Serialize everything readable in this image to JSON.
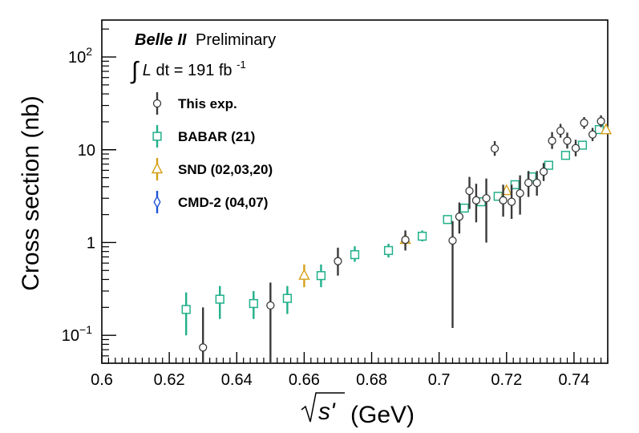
{
  "chart_data": {
    "type": "scatter",
    "ylog": true,
    "xlim": [
      0.6,
      0.75
    ],
    "ylim": [
      0.05,
      250
    ],
    "xlabel_prefix": "s'",
    "xlabel_unit": "(GeV)",
    "ylabel": "Cross section (nb)",
    "x_ticks": [
      0.6,
      0.62,
      0.64,
      0.66,
      0.68,
      0.7,
      0.72,
      0.74
    ],
    "x_tick_labels": [
      "0.6",
      "0.62",
      "0.64",
      "0.66",
      "0.68",
      "0.7",
      "0.72",
      "0.74"
    ],
    "y_major_ticks": [
      {
        "value": 0.1,
        "base": "10",
        "exp": "−1"
      },
      {
        "value": 1,
        "label": "1"
      },
      {
        "value": 10,
        "label": "10"
      },
      {
        "value": 100,
        "base": "10",
        "exp": "2"
      }
    ],
    "header": {
      "experiment": "Belle II",
      "status": "Preliminary",
      "lumi_text": "dt = 191 fb",
      "lumi_sup": "-1"
    },
    "series": [
      {
        "name": "This exp.",
        "marker": "circle",
        "color": "#3a3a3a",
        "points": [
          {
            "x": 0.63,
            "y": 0.074,
            "lo": 0.02,
            "hi": 0.2
          },
          {
            "x": 0.65,
            "y": 0.21,
            "lo": 0.02,
            "hi": 0.37
          },
          {
            "x": 0.67,
            "y": 0.63,
            "lo": 0.44,
            "hi": 0.88
          },
          {
            "x": 0.69,
            "y": 1.07,
            "lo": 0.82,
            "hi": 1.35
          },
          {
            "x": 0.704,
            "y": 1.05,
            "lo": 0.12,
            "hi": 1.7
          },
          {
            "x": 0.706,
            "y": 1.9,
            "lo": 1.25,
            "hi": 2.7
          },
          {
            "x": 0.709,
            "y": 3.6,
            "lo": 2.3,
            "hi": 5.1
          },
          {
            "x": 0.711,
            "y": 2.85,
            "lo": 1.65,
            "hi": 4.3
          },
          {
            "x": 0.714,
            "y": 3.0,
            "lo": 1.0,
            "hi": 4.9
          },
          {
            "x": 0.7165,
            "y": 10.3,
            "lo": 8.6,
            "hi": 12.4
          },
          {
            "x": 0.719,
            "y": 2.85,
            "lo": 1.9,
            "hi": 4.2
          },
          {
            "x": 0.7215,
            "y": 2.75,
            "lo": 1.8,
            "hi": 4.2
          },
          {
            "x": 0.724,
            "y": 3.4,
            "lo": 2.0,
            "hi": 5.3
          },
          {
            "x": 0.7265,
            "y": 4.4,
            "lo": 3.1,
            "hi": 5.9
          },
          {
            "x": 0.729,
            "y": 4.4,
            "lo": 3.2,
            "hi": 5.9
          },
          {
            "x": 0.731,
            "y": 5.8,
            "lo": 4.6,
            "hi": 7.2
          },
          {
            "x": 0.7335,
            "y": 12.5,
            "lo": 10.2,
            "hi": 15.5
          },
          {
            "x": 0.736,
            "y": 16.0,
            "lo": 13.5,
            "hi": 19.0
          },
          {
            "x": 0.738,
            "y": 12.5,
            "lo": 10.3,
            "hi": 15.3
          },
          {
            "x": 0.7405,
            "y": 10.4,
            "lo": 8.5,
            "hi": 12.8
          },
          {
            "x": 0.743,
            "y": 19.5,
            "lo": 16.8,
            "hi": 22.5
          },
          {
            "x": 0.7455,
            "y": 14.6,
            "lo": 12.4,
            "hi": 17.2
          },
          {
            "x": 0.748,
            "y": 20.3,
            "lo": 17.5,
            "hi": 23.5
          }
        ]
      },
      {
        "name": "BABAR (21)",
        "marker": "square",
        "color": "#21b08a",
        "points": [
          {
            "x": 0.625,
            "y": 0.19,
            "lo": 0.1,
            "hi": 0.29
          },
          {
            "x": 0.635,
            "y": 0.245,
            "lo": 0.15,
            "hi": 0.34
          },
          {
            "x": 0.645,
            "y": 0.22,
            "lo": 0.15,
            "hi": 0.3
          },
          {
            "x": 0.655,
            "y": 0.25,
            "lo": 0.17,
            "hi": 0.34
          },
          {
            "x": 0.665,
            "y": 0.44,
            "lo": 0.33,
            "hi": 0.58
          },
          {
            "x": 0.675,
            "y": 0.74,
            "lo": 0.62,
            "hi": 0.91
          },
          {
            "x": 0.685,
            "y": 0.82,
            "lo": 0.69,
            "hi": 0.97
          },
          {
            "x": 0.695,
            "y": 1.17,
            "lo": 1.03,
            "hi": 1.35
          },
          {
            "x": 0.7025,
            "y": 1.77,
            "lo": 1.6,
            "hi": 1.96
          },
          {
            "x": 0.7075,
            "y": 2.35,
            "lo": 2.13,
            "hi": 2.6
          },
          {
            "x": 0.7125,
            "y": 2.75,
            "lo": 2.5,
            "hi": 3.0
          },
          {
            "x": 0.7175,
            "y": 3.15,
            "lo": 2.9,
            "hi": 3.45
          },
          {
            "x": 0.7225,
            "y": 4.2,
            "lo": 3.9,
            "hi": 4.5
          },
          {
            "x": 0.7275,
            "y": 5.1,
            "lo": 4.8,
            "hi": 5.5
          },
          {
            "x": 0.7325,
            "y": 6.8,
            "lo": 6.4,
            "hi": 7.2
          },
          {
            "x": 0.7375,
            "y": 8.7,
            "lo": 8.2,
            "hi": 9.2
          },
          {
            "x": 0.7425,
            "y": 11.2,
            "lo": 10.6,
            "hi": 11.8
          },
          {
            "x": 0.7475,
            "y": 16.5,
            "lo": 15.7,
            "hi": 17.3
          }
        ]
      },
      {
        "name": "SND (02,03,20)",
        "marker": "triangle",
        "color": "#d4a017",
        "points": [
          {
            "x": 0.66,
            "y": 0.44,
            "lo": 0.33,
            "hi": 0.58
          },
          {
            "x": 0.69,
            "y": 1.07,
            "lo": 0.92,
            "hi": 1.22
          },
          {
            "x": 0.72,
            "y": 3.6,
            "lo": 3.3,
            "hi": 3.9
          },
          {
            "x": 0.7495,
            "y": 16.3,
            "lo": 15.5,
            "hi": 17.2
          }
        ]
      },
      {
        "name": "CMD-2 (04,07)",
        "marker": "diamond",
        "color": "#1f55d6",
        "points": []
      }
    ]
  }
}
